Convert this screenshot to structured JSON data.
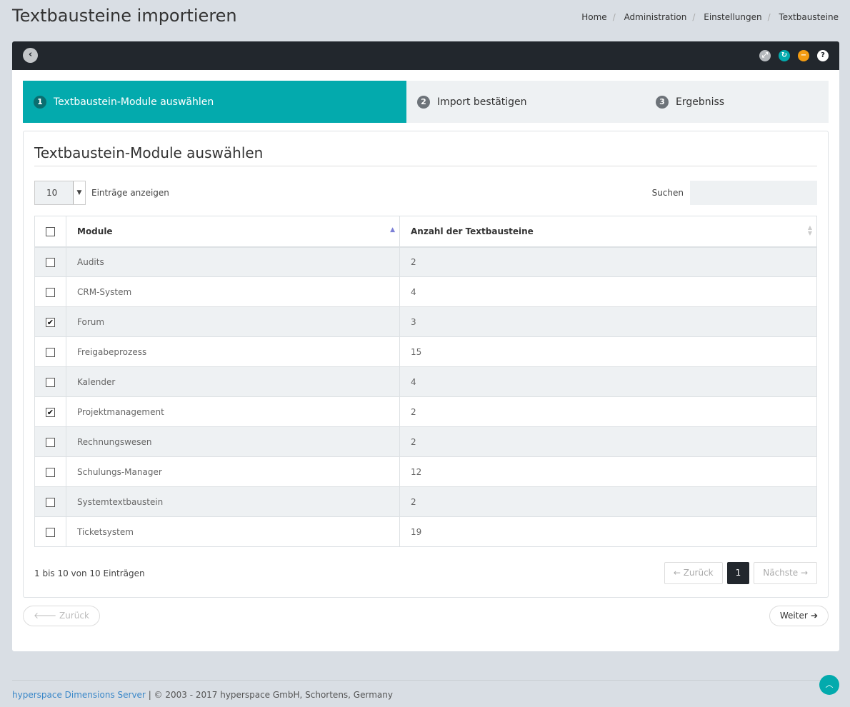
{
  "page_title": "Textbausteine importieren",
  "breadcrumb": [
    "Home",
    "Administration",
    "Einstellungen",
    "Textbausteine"
  ],
  "toolbar_icons": [
    "expand-icon",
    "refresh-icon",
    "minimize-icon",
    "help-icon"
  ],
  "colors": {
    "accent": "#03aaad",
    "dark": "#22272d",
    "refresh": "#03aaad",
    "minimize": "#f39c12"
  },
  "steps": [
    {
      "num": "1",
      "label": "Textbaustein-Module auswählen"
    },
    {
      "num": "2",
      "label": "Import bestätigen"
    },
    {
      "num": "3",
      "label": "Ergebniss"
    }
  ],
  "section_title": "Textbaustein-Module auswählen",
  "length": {
    "value": "10",
    "label": "Einträge anzeigen"
  },
  "search": {
    "label": "Suchen",
    "value": ""
  },
  "table": {
    "headers": [
      "Module",
      "Anzahl der Textbausteine"
    ],
    "rows": [
      {
        "module": "Audits",
        "count": "2",
        "checked": false
      },
      {
        "module": "CRM-System",
        "count": "4",
        "checked": false
      },
      {
        "module": "Forum",
        "count": "3",
        "checked": true
      },
      {
        "module": "Freigabeprozess",
        "count": "15",
        "checked": false
      },
      {
        "module": "Kalender",
        "count": "4",
        "checked": false
      },
      {
        "module": "Projektmanagement",
        "count": "2",
        "checked": true
      },
      {
        "module": "Rechnungswesen",
        "count": "2",
        "checked": false
      },
      {
        "module": "Schulungs-Manager",
        "count": "12",
        "checked": false
      },
      {
        "module": "Systemtextbaustein",
        "count": "2",
        "checked": false
      },
      {
        "module": "Ticketsystem",
        "count": "19",
        "checked": false
      }
    ]
  },
  "info": "1 bis 10 von 10 Einträgen",
  "pagination": {
    "prev": "← Zurück",
    "current": "1",
    "next": "Nächste →"
  },
  "buttons": {
    "back": "Zurück",
    "next": "Weiter"
  },
  "footer": {
    "link": "hyperspace Dimensions Server",
    "text": " | © 2003 - 2017 hyperspace GmbH, Schortens, Germany"
  }
}
